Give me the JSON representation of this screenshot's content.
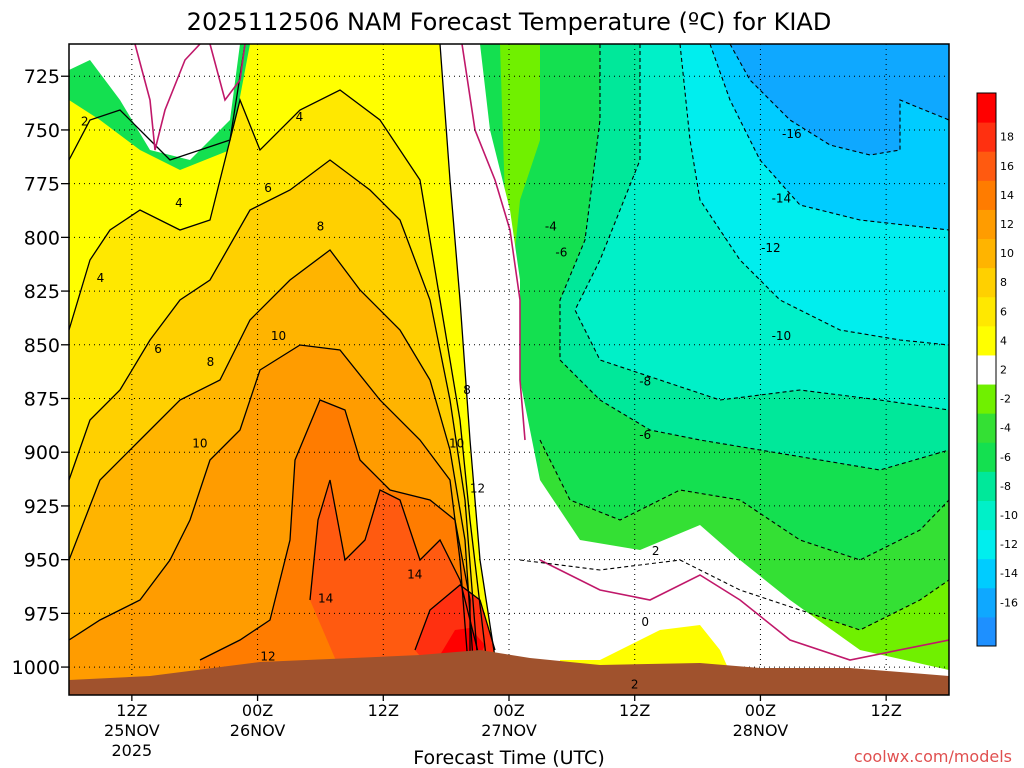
{
  "chart_data": {
    "type": "heatmap",
    "title": "2025112506 NAM Forecast Temperature (ºC) for KIAD",
    "xlabel": "Forecast Time (UTC)",
    "ylabel": "",
    "credit": "coolwx.com/models",
    "y_ticks": [
      725,
      750,
      775,
      800,
      825,
      850,
      875,
      900,
      925,
      950,
      975,
      1000
    ],
    "ylim": [
      1013,
      710
    ],
    "x_ticks": [
      {
        "hours": 6,
        "label": "12Z",
        "date": "25NOV",
        "year": "2025"
      },
      {
        "hours": 18,
        "label": "00Z",
        "date": "26NOV",
        "year": ""
      },
      {
        "hours": 30,
        "label": "12Z",
        "date": "",
        "year": ""
      },
      {
        "hours": 42,
        "label": "00Z",
        "date": "27NOV",
        "year": ""
      },
      {
        "hours": 54,
        "label": "12Z",
        "date": "",
        "year": ""
      },
      {
        "hours": 66,
        "label": "00Z",
        "date": "28NOV",
        "year": ""
      },
      {
        "hours": 78,
        "label": "12Z",
        "date": "",
        "year": ""
      }
    ],
    "xlim": [
      0,
      84
    ],
    "colorbar": [
      {
        "label": "",
        "color": "#1e90ff"
      },
      {
        "label": "-16",
        "color": "#0fa8ff"
      },
      {
        "label": "-14",
        "color": "#00ccff"
      },
      {
        "label": "-12",
        "color": "#00eeee"
      },
      {
        "label": "-10",
        "color": "#00f0c8"
      },
      {
        "label": "-8",
        "color": "#00e89a"
      },
      {
        "label": "-6",
        "color": "#14e050"
      },
      {
        "label": "-4",
        "color": "#34e034"
      },
      {
        "label": "-2",
        "color": "#70f000"
      },
      {
        "label": "2",
        "color": "#ffffff"
      },
      {
        "label": "4",
        "color": "#ffff00"
      },
      {
        "label": "6",
        "color": "#ffe800"
      },
      {
        "label": "8",
        "color": "#ffd000"
      },
      {
        "label": "10",
        "color": "#ffb400"
      },
      {
        "label": "12",
        "color": "#ff9c00"
      },
      {
        "label": "14",
        "color": "#ff7c00"
      },
      {
        "label": "16",
        "color": "#ff5a10"
      },
      {
        "label": "18",
        "color": "#ff3010"
      },
      {
        "label": "",
        "color": "#ff0000"
      }
    ],
    "contour_labels": [
      {
        "text": "2",
        "hours": 1.5,
        "p": 746
      },
      {
        "text": "4",
        "hours": 10.5,
        "p": 784
      },
      {
        "text": "4",
        "hours": 3,
        "p": 819
      },
      {
        "text": "4",
        "hours": 22,
        "p": 744
      },
      {
        "text": "6",
        "hours": 8.5,
        "p": 852
      },
      {
        "text": "6",
        "hours": 19,
        "p": 777
      },
      {
        "text": "8",
        "hours": 13.5,
        "p": 858
      },
      {
        "text": "8",
        "hours": 24,
        "p": 795
      },
      {
        "text": "10",
        "hours": 12.5,
        "p": 896
      },
      {
        "text": "10",
        "hours": 20,
        "p": 846
      },
      {
        "text": "8",
        "hours": 38,
        "p": 871
      },
      {
        "text": "10",
        "hours": 37,
        "p": 896
      },
      {
        "text": "12",
        "hours": 39,
        "p": 917
      },
      {
        "text": "14",
        "hours": 24.5,
        "p": 968
      },
      {
        "text": "14",
        "hours": 33,
        "p": 957
      },
      {
        "text": "12",
        "hours": 19,
        "p": 995
      },
      {
        "text": "-4",
        "hours": 46,
        "p": 795
      },
      {
        "text": "-6",
        "hours": 47,
        "p": 807
      },
      {
        "text": "-8",
        "hours": 55,
        "p": 867
      },
      {
        "text": "-6",
        "hours": 55,
        "p": 892
      },
      {
        "text": "2",
        "hours": 56,
        "p": 946
      },
      {
        "text": "0",
        "hours": 55,
        "p": 979
      },
      {
        "text": "2",
        "hours": 54,
        "p": 1008
      },
      {
        "text": "-16",
        "hours": 69,
        "p": 752
      },
      {
        "text": "-14",
        "hours": 68,
        "p": 782
      },
      {
        "text": "-12",
        "hours": 67,
        "p": 805
      },
      {
        "text": "-10",
        "hours": 68,
        "p": 846
      }
    ]
  }
}
